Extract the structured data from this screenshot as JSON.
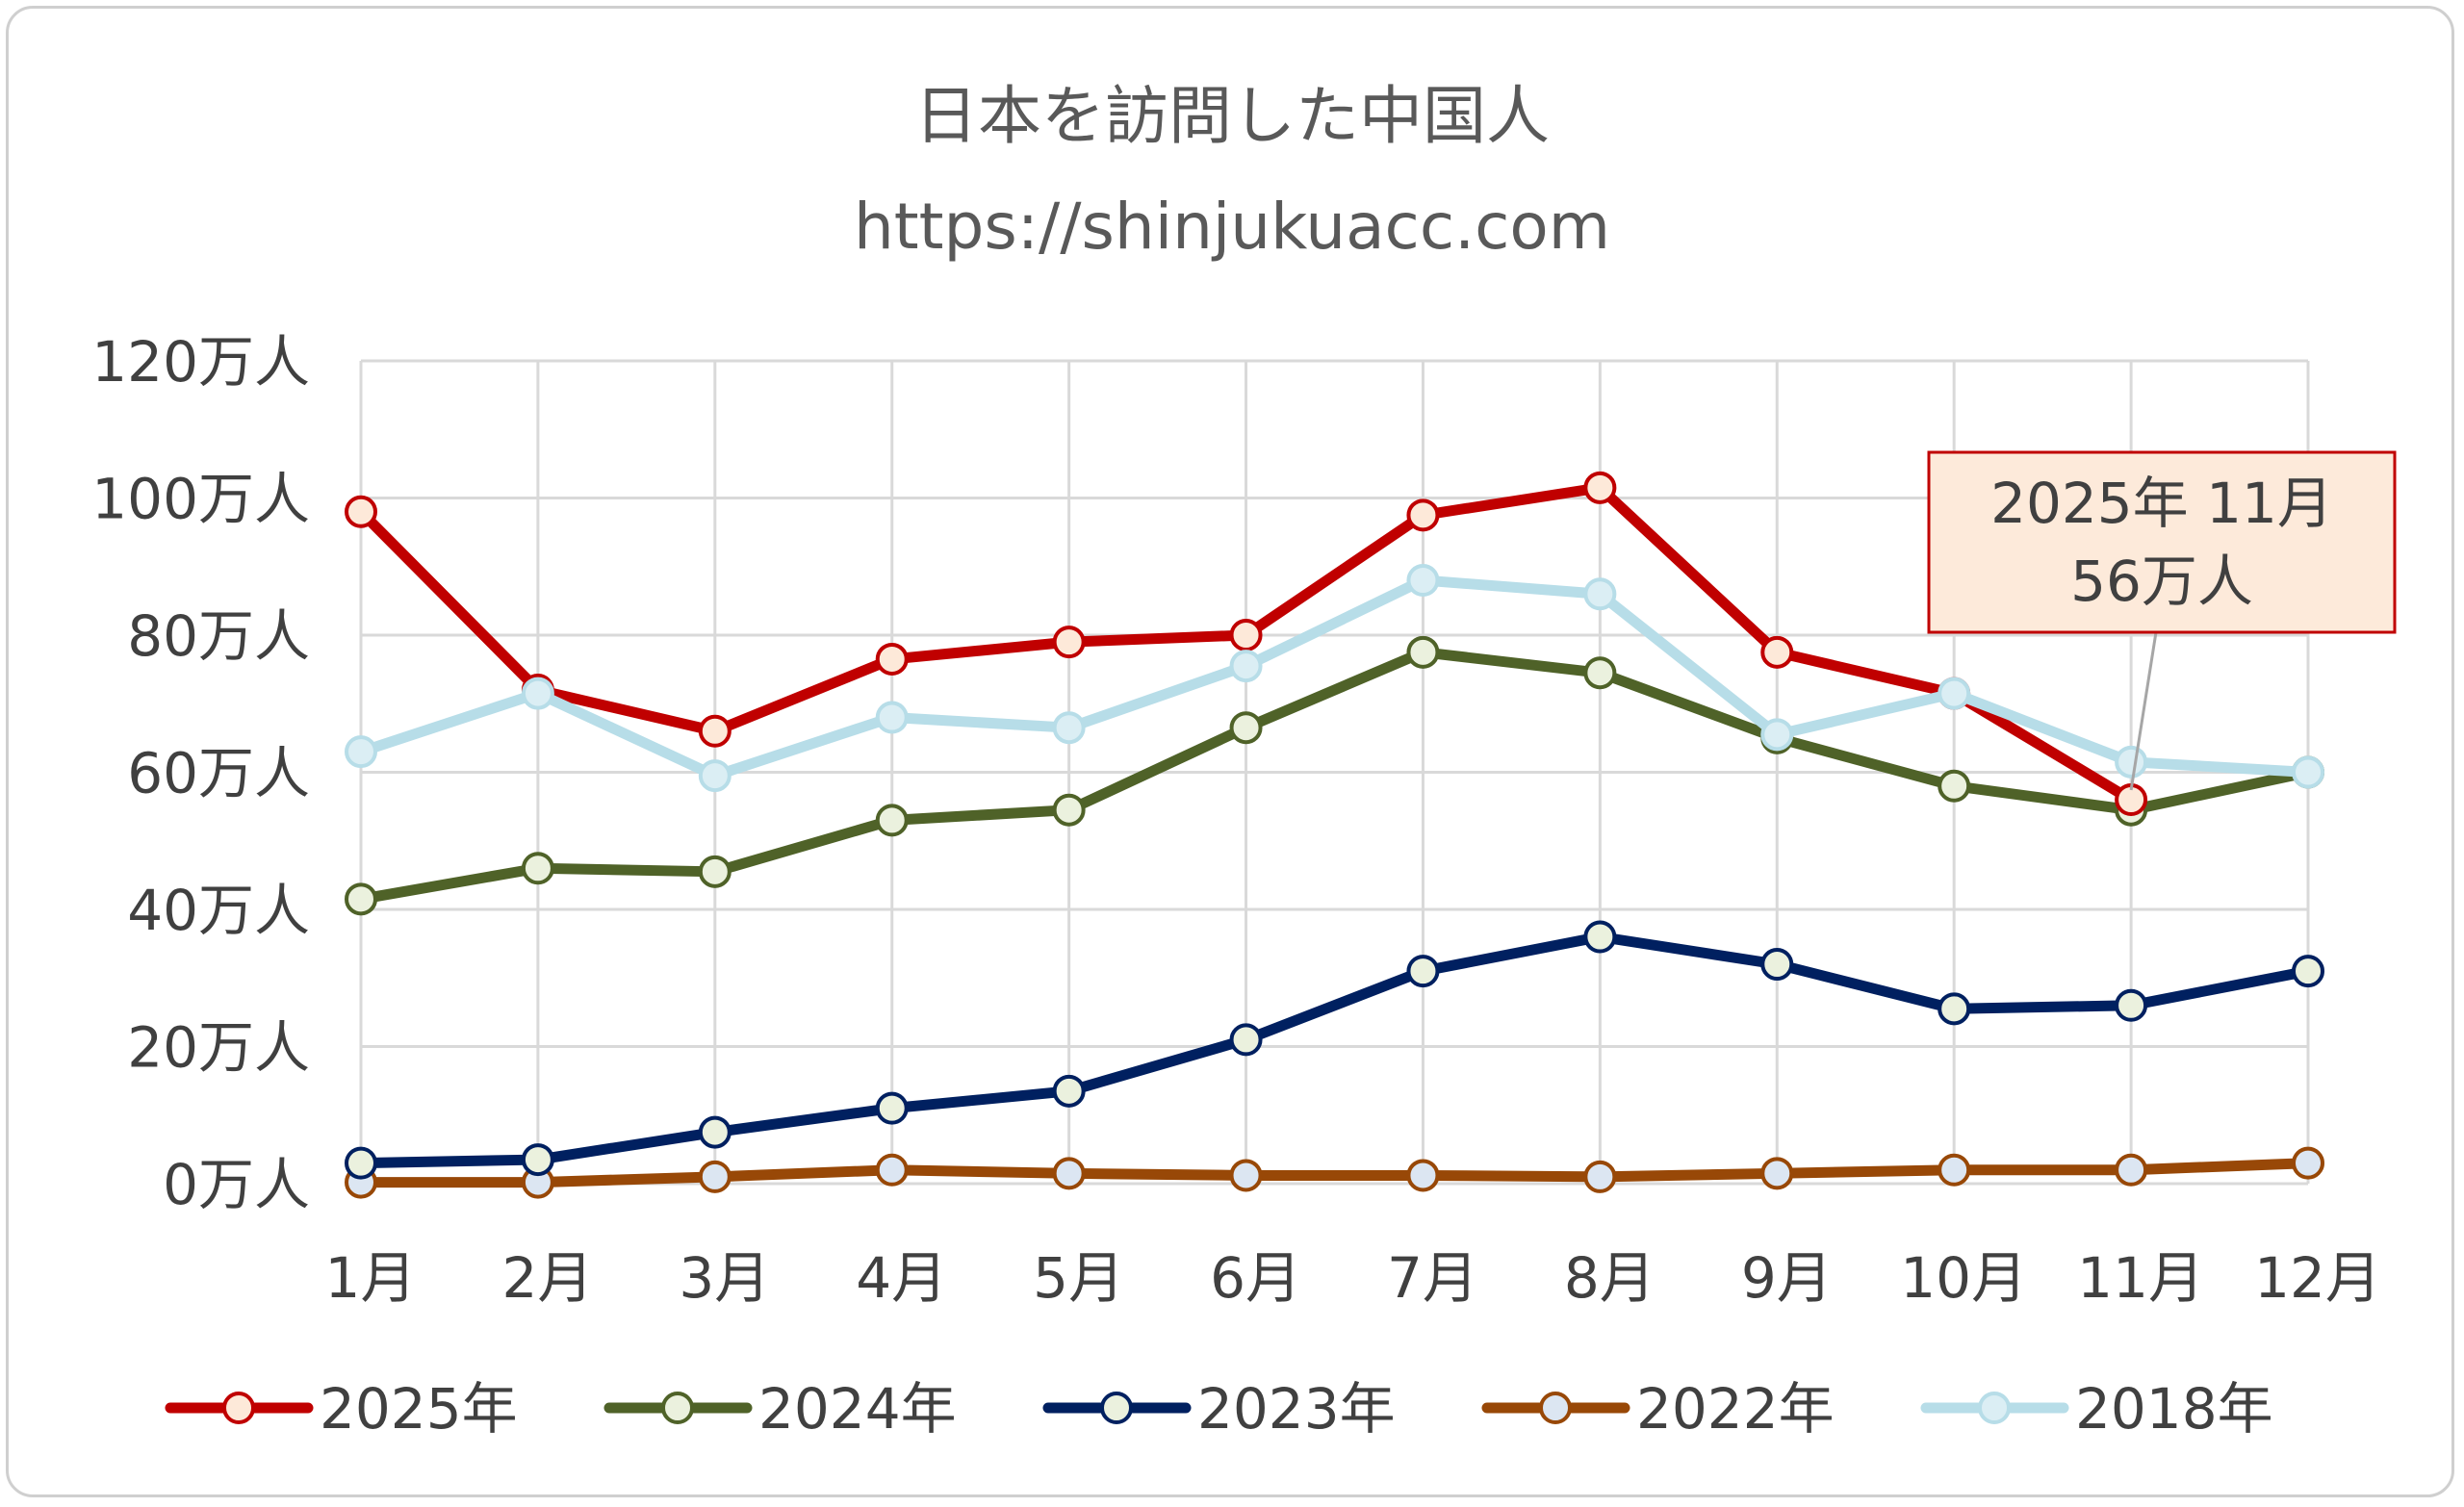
{
  "title_line1": "日本を訪問した中国人",
  "title_line2": "https://shinjukuacc.com",
  "chart_data": {
    "type": "line",
    "title": "日本を訪問した中国人",
    "subtitle": "https://shinjukuacc.com",
    "categories": [
      "1月",
      "2月",
      "3月",
      "4月",
      "5月",
      "6月",
      "7月",
      "8月",
      "9月",
      "10月",
      "11月",
      "12月"
    ],
    "y_ticks": [
      "0万人",
      "20万人",
      "40万人",
      "60万人",
      "80万人",
      "100万人",
      "120万人"
    ],
    "ylim": [
      0,
      120
    ],
    "y_unit": "万人",
    "grid": true,
    "legend_position": "bottom",
    "series": [
      {
        "name": "2025年",
        "color": "#c00000",
        "marker_fill": "#fde9d9",
        "values": [
          98,
          72,
          66,
          76.5,
          79,
          80,
          97.5,
          101.5,
          77.5,
          71.5,
          56,
          null
        ]
      },
      {
        "name": "2024年",
        "color": "#4f6228",
        "marker_fill": "#ebf1de",
        "values": [
          41.5,
          46,
          45.5,
          53,
          54.5,
          66.5,
          77.5,
          74.5,
          65,
          58,
          54.5,
          60
        ]
      },
      {
        "name": "2023年",
        "color": "#002060",
        "marker_fill": "#ebf1de",
        "values": [
          3,
          3.5,
          7.5,
          11,
          13.5,
          21,
          31,
          36,
          32,
          25.5,
          26,
          31
        ]
      },
      {
        "name": "2022年",
        "color": "#984807",
        "marker_fill": "#dce6f2",
        "values": [
          0.2,
          0.2,
          1,
          2,
          1.5,
          1.2,
          1.2,
          1,
          1.5,
          2,
          2,
          3
        ]
      },
      {
        "name": "2018年",
        "color": "#b7dde8",
        "marker_fill": "#dbeef4",
        "values": [
          63,
          71.5,
          59.5,
          68,
          66.5,
          75.5,
          88,
          86,
          65.5,
          71.5,
          61.5,
          60
        ]
      }
    ],
    "annotation": {
      "line1": "2025年 11月",
      "line2": "56万人",
      "series": "2025年",
      "category": "11月",
      "box_fill": "#fdeada",
      "box_stroke": "#c00000"
    }
  }
}
